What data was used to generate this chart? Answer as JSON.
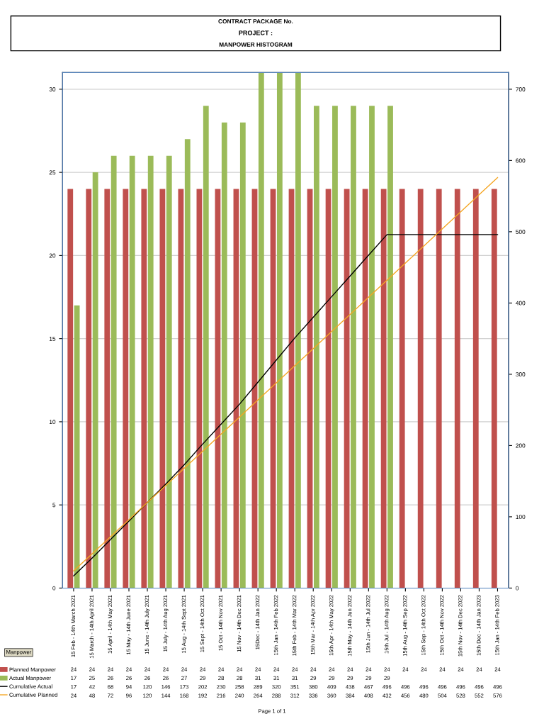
{
  "chart_data": {
    "type": "bar",
    "title": "CONTRACT PACKAGE No.",
    "subtitle": "PROJECT :",
    "annotations": [
      "MANPOWER HISTOGRAM",
      "Page 1 of 1",
      "Manpower"
    ],
    "categories": [
      "15 Feb - 14th March 2021",
      "15 March - 14th April 2021",
      "15 April - 14th May 2021",
      "15 May - 14th June 2021",
      "15 June - 14th July 2021",
      "15 July - 14th Aug 2021",
      "15 Aug - 14th Sept 2021",
      "15 Sept - 14th Oct 2021",
      "15 Oct - 14th Nov 2021",
      "15 Nov - 14th Dec 2021",
      "15Dec - 14th Jan 2022",
      "15th Jan - 14th Feb 2022",
      "15th Feb - 14th Mar 2022",
      "15th Mar - 14th Apr 2022",
      "15th Apr - 14th May 2022",
      "15th May - 14th Jun 2022",
      "15th Jun - 14th Jul 2022",
      "15th Jul - 14th Aug 2022",
      "15th Aug - 14th Sep 2022",
      "15th Sep - 14th Oct 2022",
      "15th Oct - 14th Nov 2022",
      "15th Nov - 14th Dec 2022",
      "15th Dec - 14th Jan 2023",
      "15th Jan - 14th Feb 2023"
    ],
    "series": [
      {
        "name": "Planned Manpower",
        "type": "bar",
        "color": "#c0504d",
        "values": [
          24,
          24,
          24,
          24,
          24,
          24,
          24,
          24,
          24,
          24,
          24,
          24,
          24,
          24,
          24,
          24,
          24,
          24,
          24,
          24,
          24,
          24,
          24,
          24
        ]
      },
      {
        "name": "Actual Manpower",
        "type": "bar",
        "color": "#9bbb59",
        "values": [
          17,
          25,
          26,
          26,
          26,
          26,
          27,
          29,
          28,
          28,
          31,
          31,
          31,
          29,
          29,
          29,
          29,
          29,
          null,
          null,
          null,
          null,
          null,
          null
        ]
      },
      {
        "name": "Cumulative Actual",
        "type": "line",
        "axis": "y2",
        "color": "#000000",
        "values": [
          17,
          42,
          68,
          94,
          120,
          146,
          173,
          202,
          230,
          258,
          289,
          320,
          351,
          380,
          409,
          438,
          467,
          496,
          496,
          496,
          496,
          496,
          496,
          496
        ]
      },
      {
        "name": "Cumulative Planned",
        "type": "line",
        "axis": "y2",
        "color": "#f5a623",
        "values": [
          24,
          48,
          72,
          96,
          120,
          144,
          168,
          192,
          216,
          240,
          264,
          288,
          312,
          336,
          360,
          384,
          408,
          432,
          456,
          480,
          504,
          528,
          552,
          576
        ]
      }
    ],
    "ylim": [
      0,
      31
    ],
    "yticks": [
      0,
      5,
      10,
      15,
      20,
      25,
      30
    ],
    "y2lim": [
      0,
      723.33
    ],
    "y2ticks": [
      0,
      100,
      200,
      300,
      400,
      500,
      600,
      700
    ],
    "grid": "y",
    "legend": "bottom left",
    "data_labels": true,
    "marker": "none",
    "line_style": "solid"
  }
}
